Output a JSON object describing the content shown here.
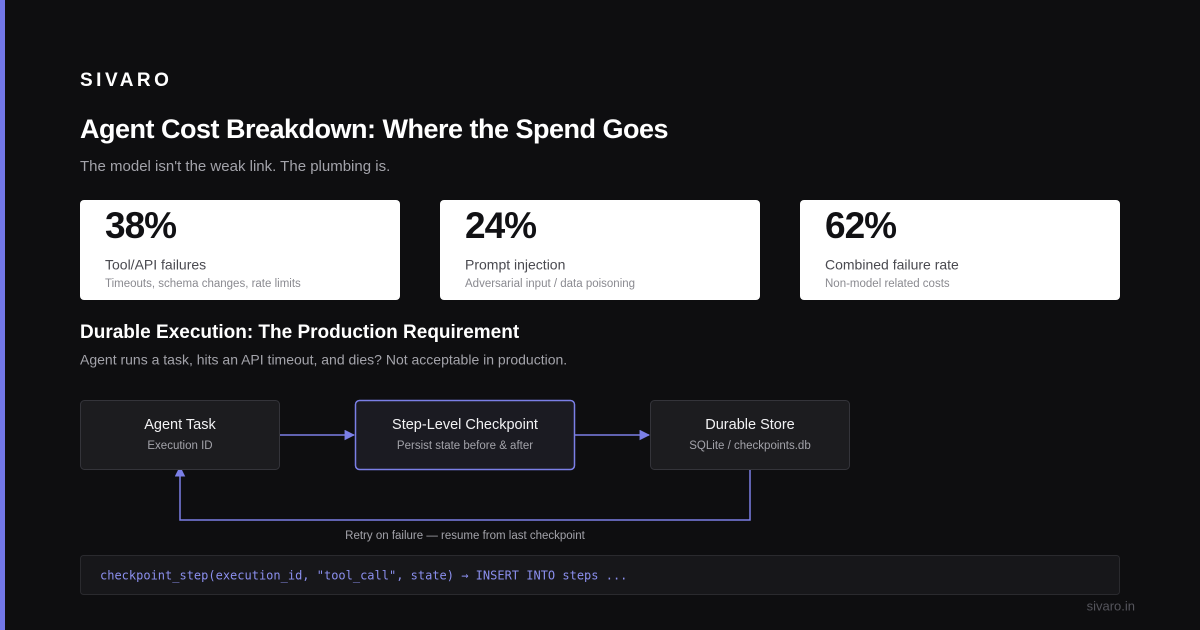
{
  "brand": "SIVARO",
  "title": "Agent Cost Breakdown: Where the Spend Goes",
  "subtitle": "The model isn't the weak link. The plumbing is.",
  "stats": [
    {
      "value": "38%",
      "label": "Tool/API failures",
      "note": "Timeouts, schema changes, rate limits"
    },
    {
      "value": "24%",
      "label": "Prompt injection",
      "note": "Adversarial input / data poisoning"
    },
    {
      "value": "62%",
      "label": "Combined failure rate",
      "note": "Non-model related costs"
    }
  ],
  "section": {
    "title": "Durable Execution: The Production Requirement",
    "subtitle": "Agent runs a task, hits an API timeout, and dies? Not acceptable in production."
  },
  "nodes": [
    {
      "label": "Agent Task",
      "sub": "Execution ID"
    },
    {
      "label": "Step-Level Checkpoint",
      "sub": "Persist state before & after"
    },
    {
      "label": "Durable Store",
      "sub": "SQLite / checkpoints.db"
    }
  ],
  "loop_label": "Retry on failure — resume from last checkpoint",
  "code": "checkpoint_step(execution_id, \"tool_call\", state) → INSERT INTO steps ...",
  "footer": "sivaro.in"
}
